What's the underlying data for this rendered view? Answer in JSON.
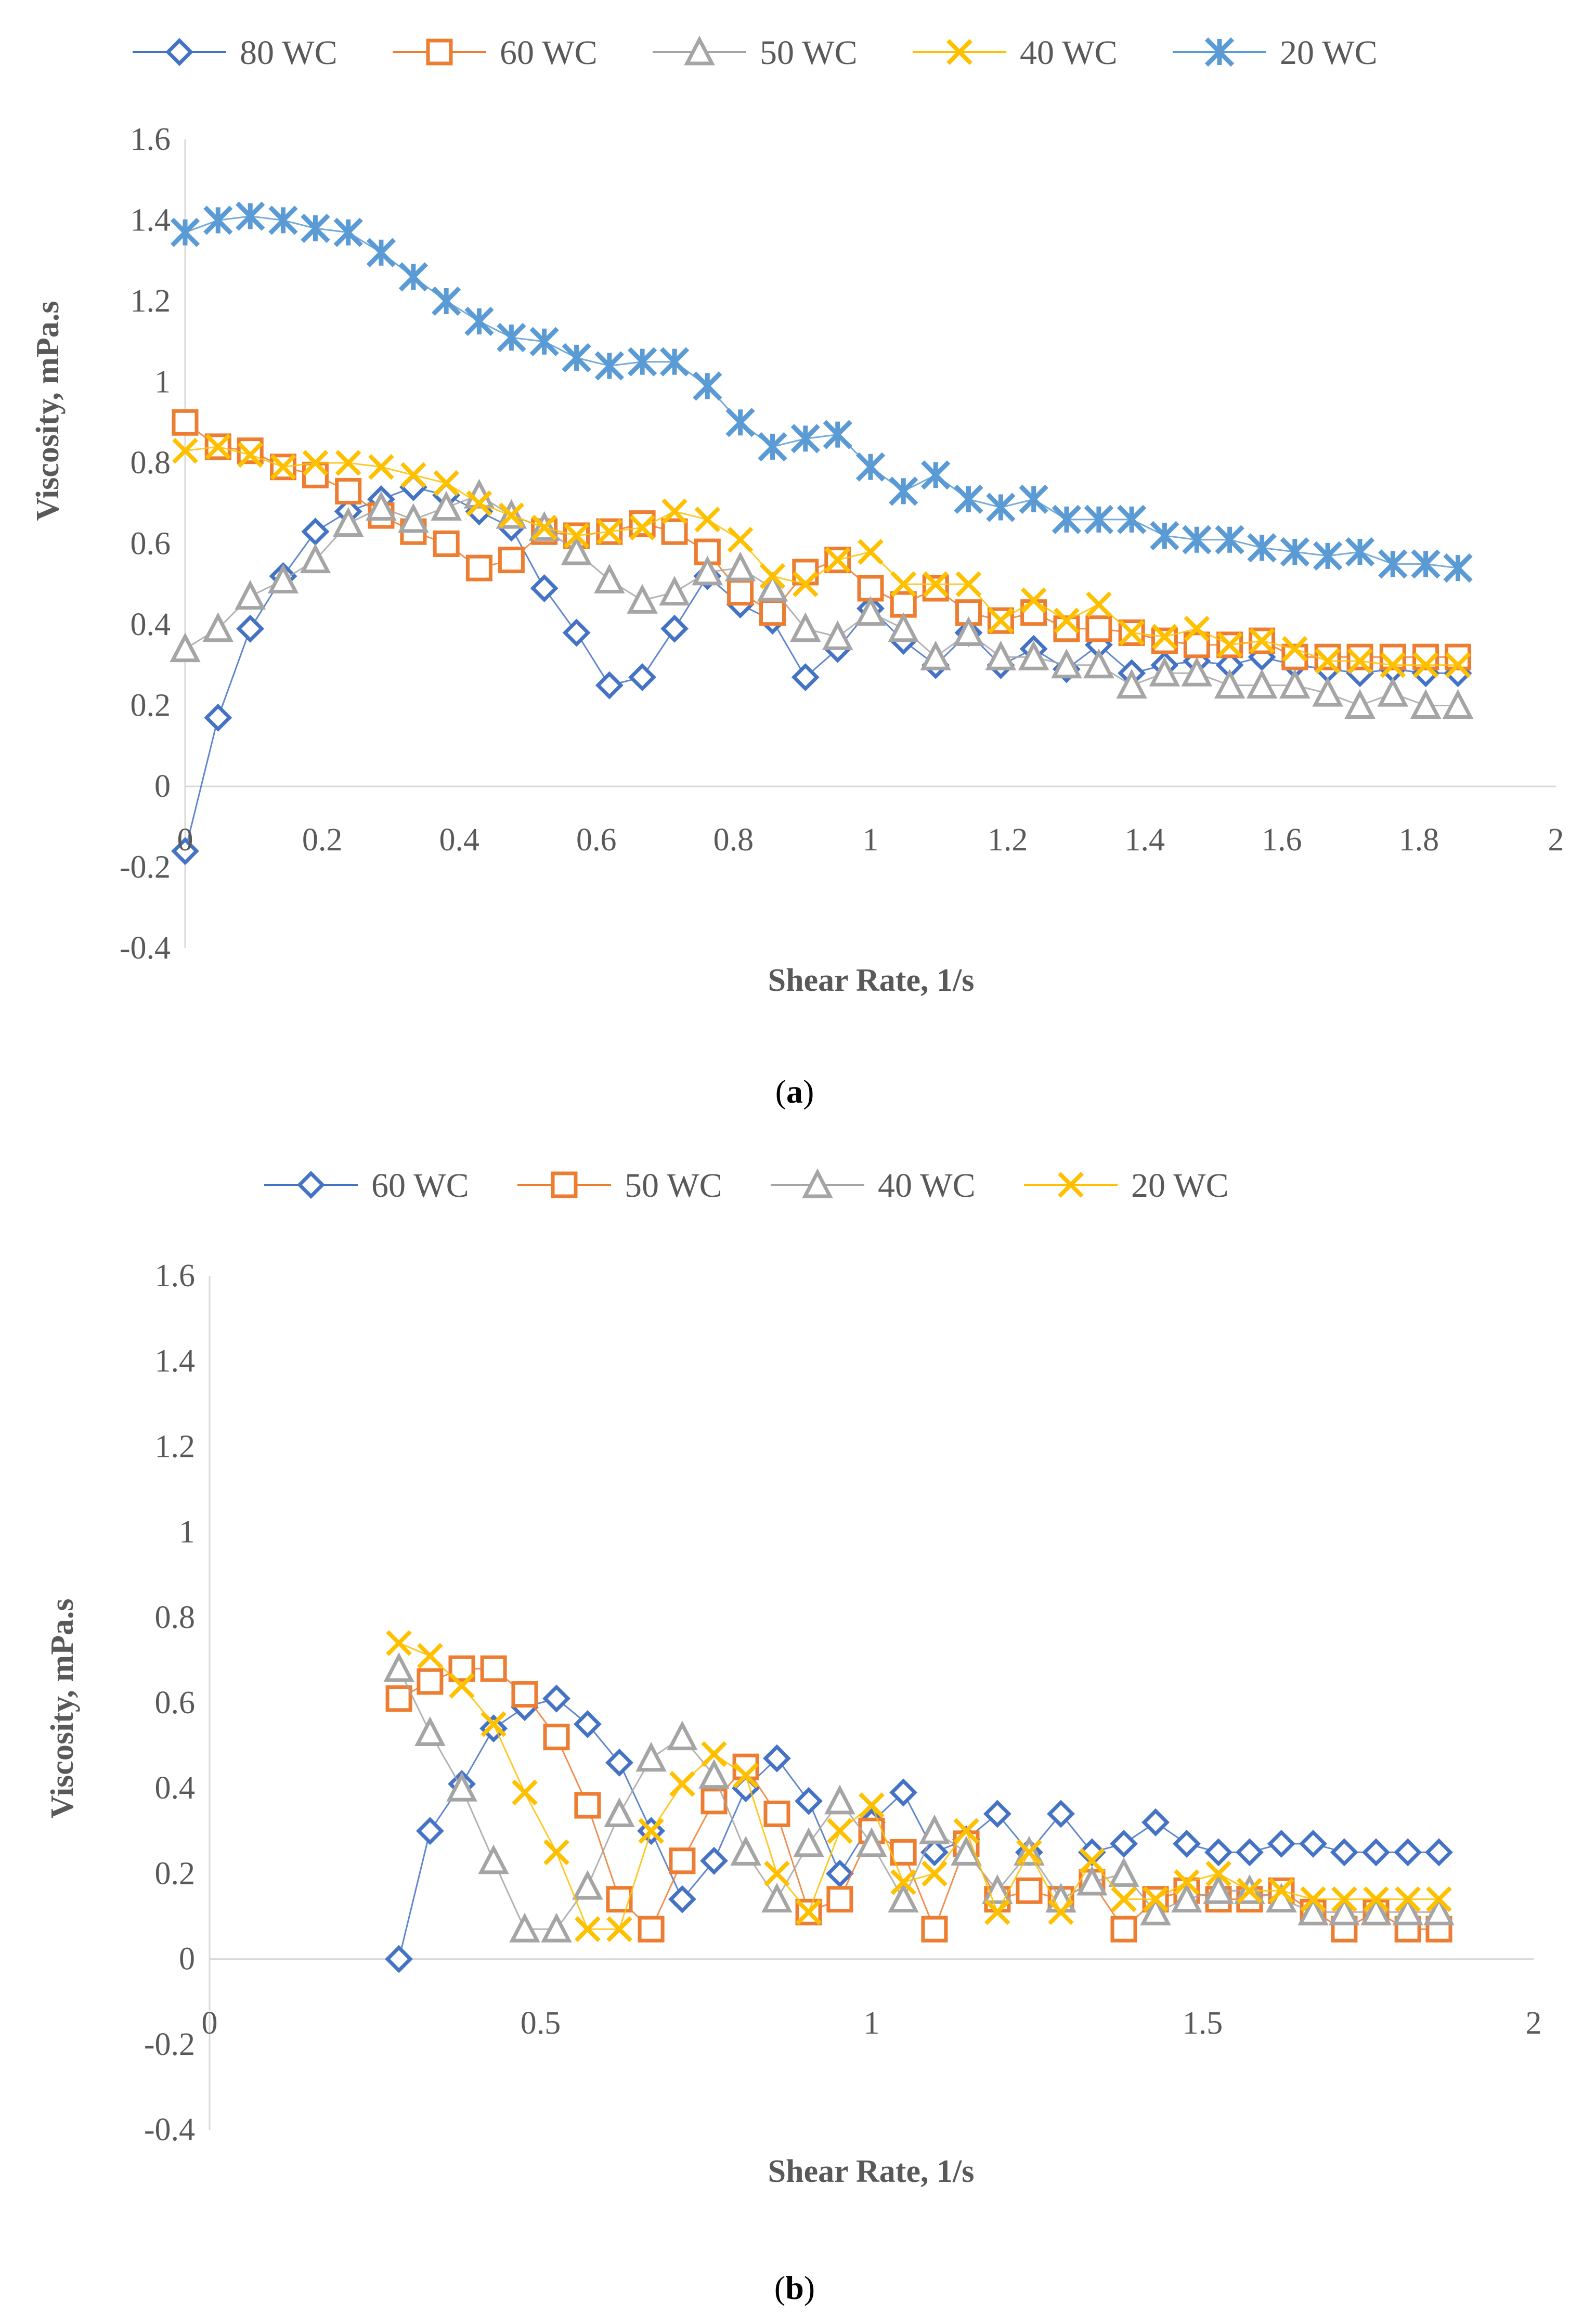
{
  "chart_data": [
    {
      "type": "scatter",
      "caption_label": "a",
      "xlabel": "Shear Rate, 1/s",
      "ylabel": "Viscosity, mPa.s",
      "xlim": [
        0,
        2
      ],
      "ylim": [
        -0.4,
        1.6
      ],
      "x_ticks": [
        "0",
        "0.2",
        "0.4",
        "0.6",
        "0.8",
        "1",
        "1.2",
        "1.4",
        "1.6",
        "1.8",
        "2"
      ],
      "y_ticks": [
        "-0.4",
        "-0.2",
        "0",
        "0.2",
        "0.4",
        "0.6",
        "0.8",
        "1",
        "1.2",
        "1.4",
        "1.6"
      ],
      "legend_position": "top-center",
      "x": [
        0,
        0.048,
        0.095,
        0.143,
        0.19,
        0.238,
        0.286,
        0.333,
        0.381,
        0.429,
        0.476,
        0.524,
        0.571,
        0.619,
        0.667,
        0.714,
        0.762,
        0.81,
        0.857,
        0.905,
        0.952,
        1.0,
        1.048,
        1.095,
        1.143,
        1.19,
        1.238,
        1.286,
        1.333,
        1.381,
        1.429,
        1.476,
        1.524,
        1.571,
        1.619,
        1.667,
        1.714,
        1.762,
        1.81,
        1.857
      ],
      "series": [
        {
          "name": "80 WC",
          "color": "#4472c4",
          "marker": "diamond",
          "values": [
            -0.16,
            0.17,
            0.39,
            0.52,
            0.63,
            0.68,
            0.71,
            0.74,
            0.72,
            0.68,
            0.64,
            0.49,
            0.38,
            0.25,
            0.27,
            0.39,
            0.52,
            0.45,
            0.41,
            0.27,
            0.34,
            0.44,
            0.36,
            0.3,
            0.38,
            0.3,
            0.34,
            0.29,
            0.35,
            0.28,
            0.3,
            0.31,
            0.3,
            0.32,
            0.3,
            0.29,
            0.28,
            0.29,
            0.28,
            0.28
          ]
        },
        {
          "name": "60 WC",
          "color": "#ed7d31",
          "marker": "square",
          "values": [
            0.9,
            0.84,
            0.83,
            0.79,
            0.77,
            0.73,
            0.67,
            0.63,
            0.6,
            0.54,
            0.56,
            0.63,
            0.62,
            0.63,
            0.65,
            0.63,
            0.58,
            0.48,
            0.43,
            0.53,
            0.56,
            0.49,
            0.45,
            0.49,
            0.43,
            0.41,
            0.43,
            0.39,
            0.39,
            0.38,
            0.36,
            0.35,
            0.35,
            0.36,
            0.32,
            0.32,
            0.32,
            0.32,
            0.32,
            0.32
          ]
        },
        {
          "name": "50 WC",
          "color": "#a5a5a5",
          "marker": "triangle",
          "values": [
            0.34,
            0.39,
            0.47,
            0.51,
            0.56,
            0.65,
            0.69,
            0.66,
            0.69,
            0.72,
            0.67,
            0.64,
            0.58,
            0.51,
            0.46,
            0.48,
            0.53,
            0.54,
            0.49,
            0.39,
            0.37,
            0.43,
            0.39,
            0.32,
            0.38,
            0.32,
            0.32,
            0.3,
            0.3,
            0.25,
            0.28,
            0.28,
            0.25,
            0.25,
            0.25,
            0.23,
            0.2,
            0.23,
            0.2,
            0.2
          ]
        },
        {
          "name": "40 WC",
          "color": "#ffc000",
          "marker": "x",
          "values": [
            0.83,
            0.84,
            0.82,
            0.79,
            0.8,
            0.8,
            0.79,
            0.77,
            0.75,
            0.7,
            0.67,
            0.64,
            0.62,
            0.63,
            0.64,
            0.68,
            0.66,
            0.61,
            0.52,
            0.5,
            0.56,
            0.58,
            0.5,
            0.5,
            0.5,
            0.41,
            0.46,
            0.41,
            0.45,
            0.38,
            0.37,
            0.39,
            0.35,
            0.36,
            0.34,
            0.31,
            0.31,
            0.3,
            0.3,
            0.3
          ]
        },
        {
          "name": "20 WC",
          "color": "#5b9bd5",
          "marker": "asterisk",
          "values": [
            1.37,
            1.4,
            1.41,
            1.4,
            1.38,
            1.37,
            1.32,
            1.26,
            1.2,
            1.15,
            1.11,
            1.1,
            1.06,
            1.04,
            1.05,
            1.05,
            0.99,
            0.9,
            0.84,
            0.86,
            0.87,
            0.79,
            0.73,
            0.77,
            0.71,
            0.69,
            0.71,
            0.66,
            0.66,
            0.66,
            0.62,
            0.61,
            0.61,
            0.59,
            0.58,
            0.57,
            0.58,
            0.55,
            0.55,
            0.54
          ]
        }
      ]
    },
    {
      "type": "scatter",
      "caption_label": "b",
      "xlabel": "Shear Rate, 1/s",
      "ylabel": "Viscosity, mPa.s",
      "xlim": [
        0,
        2
      ],
      "ylim": [
        -0.4,
        1.6
      ],
      "x_ticks": [
        "0",
        "0.5",
        "1",
        "1.5",
        "2"
      ],
      "y_ticks": [
        "-0.4",
        "-0.2",
        "0",
        "0.2",
        "0.4",
        "0.6",
        "0.8",
        "1",
        "1.2",
        "1.4",
        "1.6"
      ],
      "legend_position": "top-center",
      "x": [
        0.286,
        0.333,
        0.381,
        0.429,
        0.476,
        0.524,
        0.571,
        0.619,
        0.667,
        0.714,
        0.762,
        0.81,
        0.857,
        0.905,
        0.952,
        1.0,
        1.048,
        1.095,
        1.143,
        1.19,
        1.238,
        1.286,
        1.333,
        1.381,
        1.429,
        1.476,
        1.524,
        1.571,
        1.619,
        1.667,
        1.714,
        1.762,
        1.81,
        1.857
      ],
      "series": [
        {
          "name": "60 WC",
          "color": "#4472c4",
          "marker": "diamond",
          "values": [
            0.0,
            0.3,
            0.41,
            0.54,
            0.59,
            0.61,
            0.55,
            0.46,
            0.3,
            0.14,
            0.23,
            0.4,
            0.47,
            0.37,
            0.2,
            0.32,
            0.39,
            0.25,
            0.28,
            0.34,
            0.25,
            0.34,
            0.25,
            0.27,
            0.32,
            0.27,
            0.25,
            0.25,
            0.27,
            0.27,
            0.25,
            0.25,
            0.25,
            0.25
          ]
        },
        {
          "name": "50 WC",
          "color": "#ed7d31",
          "marker": "square",
          "values": [
            0.61,
            0.65,
            0.68,
            0.68,
            0.62,
            0.52,
            0.36,
            0.14,
            0.07,
            0.23,
            0.37,
            0.45,
            0.34,
            0.11,
            0.14,
            0.3,
            0.25,
            0.07,
            0.27,
            0.14,
            0.16,
            0.14,
            0.18,
            0.07,
            0.14,
            0.16,
            0.14,
            0.14,
            0.16,
            0.11,
            0.07,
            0.11,
            0.07,
            0.07
          ]
        },
        {
          "name": "40 WC",
          "color": "#a5a5a5",
          "marker": "triangle",
          "values": [
            0.68,
            0.53,
            0.4,
            0.23,
            0.07,
            0.07,
            0.17,
            0.34,
            0.47,
            0.52,
            0.43,
            0.25,
            0.14,
            0.27,
            0.37,
            0.27,
            0.14,
            0.3,
            0.25,
            0.16,
            0.25,
            0.14,
            0.18,
            0.2,
            0.11,
            0.14,
            0.16,
            0.16,
            0.14,
            0.11,
            0.11,
            0.11,
            0.11,
            0.11
          ]
        },
        {
          "name": "20 WC",
          "color": "#ffc000",
          "marker": "x",
          "values": [
            0.74,
            0.71,
            0.64,
            0.55,
            0.39,
            0.25,
            0.07,
            0.07,
            0.3,
            0.41,
            0.48,
            0.43,
            0.2,
            0.11,
            0.3,
            0.36,
            0.18,
            0.2,
            0.3,
            0.11,
            0.25,
            0.11,
            0.23,
            0.14,
            0.14,
            0.18,
            0.2,
            0.16,
            0.16,
            0.14,
            0.14,
            0.14,
            0.14,
            0.14
          ]
        }
      ]
    }
  ]
}
